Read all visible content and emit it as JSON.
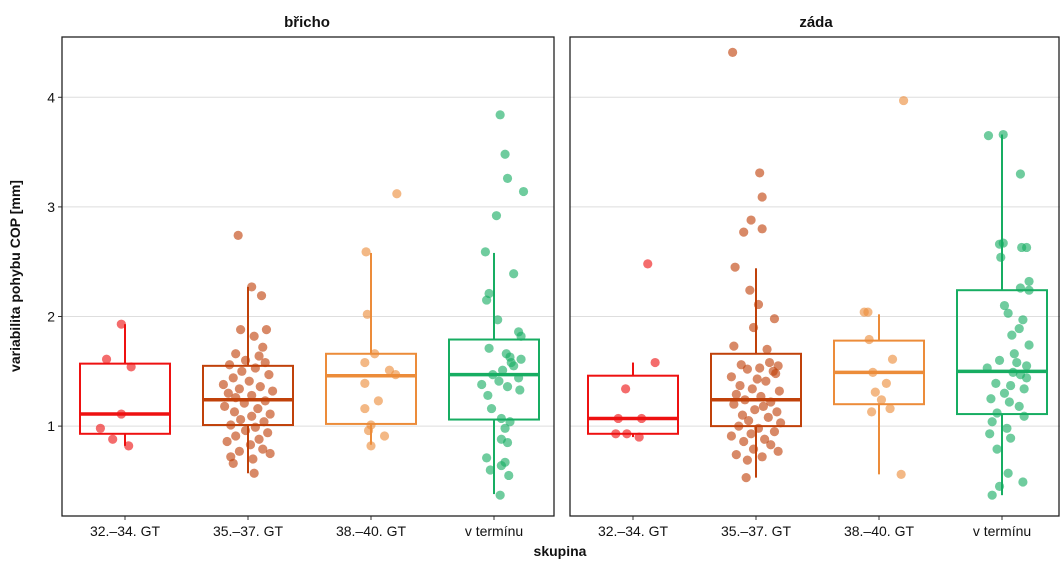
{
  "chart_data": {
    "type": "box",
    "xlabel": "skupina",
    "ylabel": "variabilita pohybu COP [mm]",
    "ylim": [
      0.18,
      4.55
    ],
    "yticks": [
      1,
      2,
      3,
      4
    ],
    "categories": [
      "32.–34. GT",
      "35.–37. GT",
      "38.–40. GT",
      "v termínu"
    ],
    "colors": [
      "#ee1111",
      "#c0410a",
      "#ec8c3a",
      "#17ad62"
    ],
    "grid": true,
    "legend": "none",
    "facets": [
      {
        "title": "břicho",
        "groups": [
          {
            "category": "32.–34. GT",
            "q1": 0.93,
            "median": 1.11,
            "q3": 1.57,
            "whisker_low": 0.82,
            "whisker_high": 1.93,
            "points": [
              [
                -0.03,
                1.93
              ],
              [
                -0.15,
                1.61
              ],
              [
                0.05,
                1.54
              ],
              [
                -0.03,
                1.11
              ],
              [
                -0.2,
                0.98
              ],
              [
                -0.1,
                0.88
              ],
              [
                0.03,
                0.82
              ]
            ]
          },
          {
            "category": "35.–37. GT",
            "q1": 1.01,
            "median": 1.24,
            "q3": 1.55,
            "whisker_low": 0.57,
            "whisker_high": 2.27,
            "points": [
              [
                -0.08,
                2.74
              ],
              [
                0.03,
                2.27
              ],
              [
                0.11,
                2.19
              ],
              [
                -0.06,
                1.88
              ],
              [
                0.15,
                1.88
              ],
              [
                0.05,
                1.82
              ],
              [
                0.12,
                1.72
              ],
              [
                -0.1,
                1.66
              ],
              [
                0.09,
                1.64
              ],
              [
                -0.02,
                1.6
              ],
              [
                0.14,
                1.58
              ],
              [
                -0.15,
                1.56
              ],
              [
                0.06,
                1.53
              ],
              [
                -0.05,
                1.5
              ],
              [
                0.17,
                1.47
              ],
              [
                -0.12,
                1.44
              ],
              [
                0.01,
                1.41
              ],
              [
                -0.2,
                1.38
              ],
              [
                0.1,
                1.36
              ],
              [
                -0.07,
                1.34
              ],
              [
                0.2,
                1.32
              ],
              [
                -0.16,
                1.3
              ],
              [
                0.03,
                1.28
              ],
              [
                -0.1,
                1.26
              ],
              [
                0.14,
                1.23
              ],
              [
                -0.03,
                1.21
              ],
              [
                -0.19,
                1.18
              ],
              [
                0.08,
                1.16
              ],
              [
                -0.11,
                1.13
              ],
              [
                0.18,
                1.11
              ],
              [
                0.03,
                1.09
              ],
              [
                -0.06,
                1.06
              ],
              [
                0.13,
                1.04
              ],
              [
                -0.14,
                1.01
              ],
              [
                0.06,
                0.99
              ],
              [
                -0.02,
                0.96
              ],
              [
                0.16,
                0.94
              ],
              [
                -0.1,
                0.91
              ],
              [
                0.09,
                0.88
              ],
              [
                -0.17,
                0.86
              ],
              [
                0.02,
                0.83
              ],
              [
                0.12,
                0.79
              ],
              [
                -0.07,
                0.77
              ],
              [
                0.18,
                0.75
              ],
              [
                -0.14,
                0.72
              ],
              [
                0.04,
                0.7
              ],
              [
                -0.12,
                0.66
              ],
              [
                0.05,
                0.57
              ]
            ]
          },
          {
            "category": "38.–40. GT",
            "q1": 1.02,
            "median": 1.46,
            "q3": 1.66,
            "whisker_low": 0.83,
            "whisker_high": 2.58,
            "points": [
              [
                0.21,
                3.12
              ],
              [
                -0.04,
                2.59
              ],
              [
                -0.03,
                2.02
              ],
              [
                -0.05,
                1.58
              ],
              [
                0.03,
                1.66
              ],
              [
                0.15,
                1.51
              ],
              [
                0.2,
                1.47
              ],
              [
                -0.05,
                1.39
              ],
              [
                0.06,
                1.23
              ],
              [
                -0.05,
                1.16
              ],
              [
                0.0,
                1.01
              ],
              [
                -0.02,
                0.96
              ],
              [
                0.11,
                0.91
              ],
              [
                0.0,
                0.82
              ]
            ]
          },
          {
            "category": "v termínu",
            "q1": 1.06,
            "median": 1.47,
            "q3": 1.79,
            "whisker_low": 0.38,
            "whisker_high": 2.58,
            "points": [
              [
                0.05,
                3.84
              ],
              [
                0.09,
                3.48
              ],
              [
                0.11,
                3.26
              ],
              [
                0.24,
                3.14
              ],
              [
                0.02,
                2.92
              ],
              [
                -0.07,
                2.59
              ],
              [
                0.16,
                2.39
              ],
              [
                -0.04,
                2.21
              ],
              [
                -0.06,
                2.15
              ],
              [
                0.03,
                1.97
              ],
              [
                0.2,
                1.86
              ],
              [
                0.22,
                1.82
              ],
              [
                -0.04,
                1.71
              ],
              [
                0.1,
                1.66
              ],
              [
                0.13,
                1.63
              ],
              [
                0.22,
                1.61
              ],
              [
                0.14,
                1.58
              ],
              [
                0.16,
                1.55
              ],
              [
                0.07,
                1.51
              ],
              [
                -0.01,
                1.47
              ],
              [
                0.2,
                1.44
              ],
              [
                0.04,
                1.41
              ],
              [
                -0.1,
                1.38
              ],
              [
                0.11,
                1.36
              ],
              [
                0.21,
                1.33
              ],
              [
                -0.05,
                1.28
              ],
              [
                -0.02,
                1.16
              ],
              [
                0.06,
                1.07
              ],
              [
                0.13,
                1.04
              ],
              [
                0.09,
                0.98
              ],
              [
                0.06,
                0.88
              ],
              [
                0.11,
                0.85
              ],
              [
                -0.06,
                0.71
              ],
              [
                0.09,
                0.67
              ],
              [
                0.06,
                0.64
              ],
              [
                -0.03,
                0.6
              ],
              [
                0.12,
                0.55
              ],
              [
                0.05,
                0.37
              ]
            ]
          }
        ]
      },
      {
        "title": "záda",
        "groups": [
          {
            "category": "32.–34. GT",
            "q1": 0.93,
            "median": 1.07,
            "q3": 1.46,
            "whisker_low": 0.9,
            "whisker_high": 1.58,
            "points": [
              [
                0.12,
                2.48
              ],
              [
                0.18,
                1.58
              ],
              [
                -0.06,
                1.34
              ],
              [
                -0.12,
                1.07
              ],
              [
                0.07,
                1.07
              ],
              [
                -0.05,
                0.93
              ],
              [
                -0.14,
                0.93
              ],
              [
                0.05,
                0.9
              ]
            ]
          },
          {
            "category": "35.–37. GT",
            "q1": 1.0,
            "median": 1.24,
            "q3": 1.66,
            "whisker_low": 0.53,
            "whisker_high": 2.44,
            "points": [
              [
                -0.19,
                4.41
              ],
              [
                0.03,
                3.31
              ],
              [
                0.05,
                3.09
              ],
              [
                -0.04,
                2.88
              ],
              [
                0.05,
                2.8
              ],
              [
                -0.1,
                2.77
              ],
              [
                -0.17,
                2.45
              ],
              [
                -0.05,
                2.24
              ],
              [
                0.02,
                2.11
              ],
              [
                0.15,
                1.98
              ],
              [
                -0.02,
                1.9
              ],
              [
                -0.18,
                1.73
              ],
              [
                0.09,
                1.7
              ],
              [
                0.11,
                1.58
              ],
              [
                -0.12,
                1.56
              ],
              [
                0.18,
                1.55
              ],
              [
                0.03,
                1.53
              ],
              [
                -0.07,
                1.52
              ],
              [
                0.14,
                1.5
              ],
              [
                0.16,
                1.48
              ],
              [
                -0.2,
                1.45
              ],
              [
                0.01,
                1.43
              ],
              [
                0.08,
                1.41
              ],
              [
                -0.13,
                1.37
              ],
              [
                -0.03,
                1.34
              ],
              [
                0.19,
                1.32
              ],
              [
                -0.16,
                1.29
              ],
              [
                0.04,
                1.27
              ],
              [
                -0.09,
                1.24
              ],
              [
                0.12,
                1.22
              ],
              [
                -0.18,
                1.2
              ],
              [
                0.06,
                1.18
              ],
              [
                -0.01,
                1.15
              ],
              [
                0.17,
                1.13
              ],
              [
                -0.11,
                1.1
              ],
              [
                0.1,
                1.08
              ],
              [
                -0.06,
                1.05
              ],
              [
                0.2,
                1.03
              ],
              [
                -0.14,
                1.0
              ],
              [
                0.02,
                0.98
              ],
              [
                0.15,
                0.95
              ],
              [
                -0.04,
                0.93
              ],
              [
                -0.2,
                0.91
              ],
              [
                0.07,
                0.88
              ],
              [
                -0.1,
                0.86
              ],
              [
                0.12,
                0.83
              ],
              [
                -0.02,
                0.79
              ],
              [
                0.18,
                0.77
              ],
              [
                -0.16,
                0.74
              ],
              [
                0.05,
                0.72
              ],
              [
                -0.07,
                0.69
              ],
              [
                -0.08,
                0.53
              ]
            ]
          },
          {
            "category": "38.–40. GT",
            "q1": 1.2,
            "median": 1.49,
            "q3": 1.78,
            "whisker_low": 0.56,
            "whisker_high": 2.02,
            "points": [
              [
                0.2,
                3.97
              ],
              [
                -0.12,
                2.04
              ],
              [
                -0.09,
                2.04
              ],
              [
                -0.08,
                1.79
              ],
              [
                0.11,
                1.61
              ],
              [
                -0.05,
                1.49
              ],
              [
                0.06,
                1.39
              ],
              [
                -0.03,
                1.31
              ],
              [
                0.02,
                1.24
              ],
              [
                0.09,
                1.16
              ],
              [
                -0.06,
                1.13
              ],
              [
                0.18,
                0.56
              ]
            ]
          },
          {
            "category": "v termínu",
            "q1": 1.11,
            "median": 1.5,
            "q3": 2.24,
            "whisker_low": 0.37,
            "whisker_high": 3.66,
            "points": [
              [
                -0.11,
                3.65
              ],
              [
                0.01,
                3.66
              ],
              [
                0.15,
                3.3
              ],
              [
                -0.02,
                2.66
              ],
              [
                0.01,
                2.67
              ],
              [
                0.16,
                2.63
              ],
              [
                0.2,
                2.63
              ],
              [
                -0.01,
                2.54
              ],
              [
                0.22,
                2.32
              ],
              [
                0.15,
                2.26
              ],
              [
                0.22,
                2.24
              ],
              [
                0.02,
                2.1
              ],
              [
                0.05,
                2.03
              ],
              [
                0.17,
                1.97
              ],
              [
                0.14,
                1.89
              ],
              [
                0.08,
                1.83
              ],
              [
                0.22,
                1.74
              ],
              [
                0.1,
                1.66
              ],
              [
                -0.02,
                1.6
              ],
              [
                0.12,
                1.58
              ],
              [
                0.2,
                1.55
              ],
              [
                -0.12,
                1.53
              ],
              [
                0.09,
                1.49
              ],
              [
                0.15,
                1.47
              ],
              [
                0.2,
                1.44
              ],
              [
                -0.05,
                1.39
              ],
              [
                0.07,
                1.37
              ],
              [
                0.18,
                1.34
              ],
              [
                0.02,
                1.3
              ],
              [
                -0.09,
                1.25
              ],
              [
                0.06,
                1.22
              ],
              [
                0.14,
                1.18
              ],
              [
                -0.04,
                1.12
              ],
              [
                0.18,
                1.09
              ],
              [
                -0.08,
                1.04
              ],
              [
                0.04,
                0.98
              ],
              [
                -0.1,
                0.93
              ],
              [
                0.07,
                0.89
              ],
              [
                -0.04,
                0.79
              ],
              [
                0.05,
                0.57
              ],
              [
                -0.02,
                0.45
              ],
              [
                0.17,
                0.49
              ],
              [
                -0.08,
                0.37
              ]
            ]
          }
        ]
      }
    ]
  }
}
